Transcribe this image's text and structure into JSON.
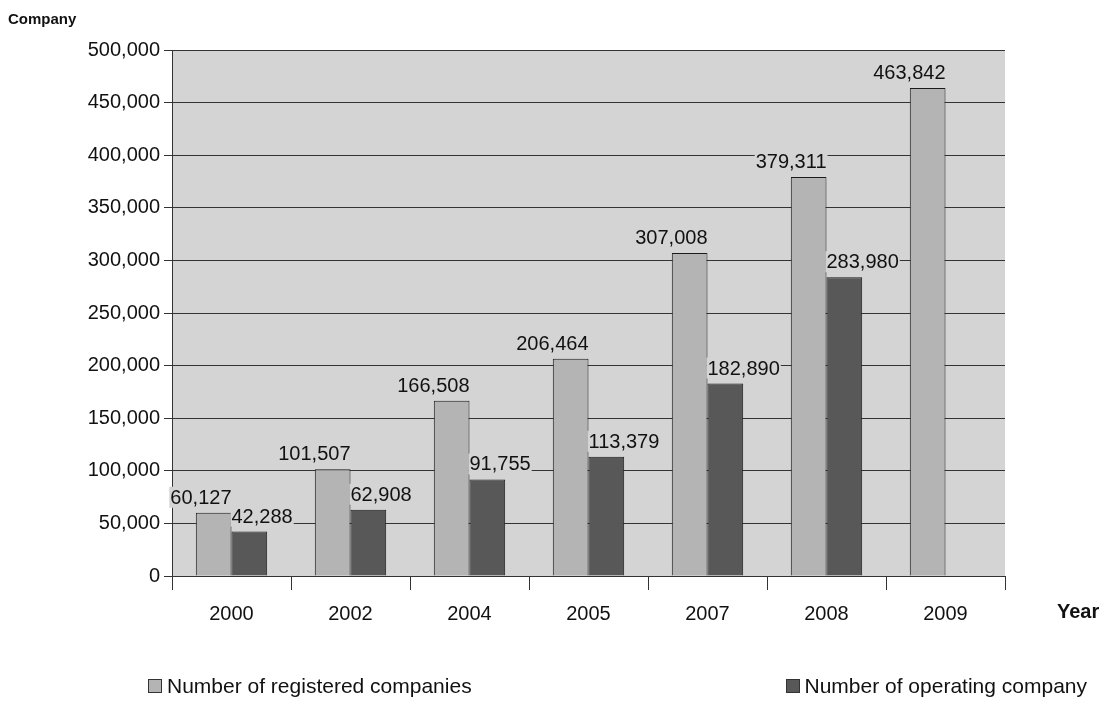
{
  "chart_data": {
    "type": "bar",
    "ylabel": "Company",
    "xlabel": "Year",
    "categories": [
      "2000",
      "2002",
      "2004",
      "2005",
      "2007",
      "2008",
      "2009"
    ],
    "series": [
      {
        "name": "Number of registered companies",
        "color": "#b4b4b4",
        "values": [
          60127,
          101507,
          166508,
          206464,
          307008,
          379311,
          463842
        ],
        "value_labels": [
          "60,127",
          "101,507",
          "166,508",
          "206,464",
          "307,008",
          "379,311",
          "463,842"
        ]
      },
      {
        "name": "Number of operating company",
        "color": "#585858",
        "values": [
          42288,
          62908,
          91755,
          113379,
          182890,
          283980,
          null
        ],
        "value_labels": [
          "42,288",
          "62,908",
          "91,755",
          "113,379",
          "182,890",
          "283,980",
          null
        ]
      }
    ],
    "ylim": [
      0,
      500000
    ],
    "yticks": [
      0,
      {
        "value": 50000,
        "label": "50,000"
      },
      {
        "value": 100000,
        "label": "100,000"
      },
      {
        "value": 150000,
        "label": "150,000"
      },
      {
        "value": 200000,
        "label": "200,000"
      },
      {
        "value": 250000,
        "label": "250,000"
      },
      {
        "value": 300000,
        "label": "300,000"
      },
      {
        "value": 350000,
        "label": "350,000"
      },
      {
        "value": 400000,
        "label": "400,000"
      },
      {
        "value": 450000,
        "label": "450,000"
      },
      {
        "value": 500000,
        "label": "500,000"
      }
    ],
    "grid": "y",
    "legend": "bottom"
  }
}
